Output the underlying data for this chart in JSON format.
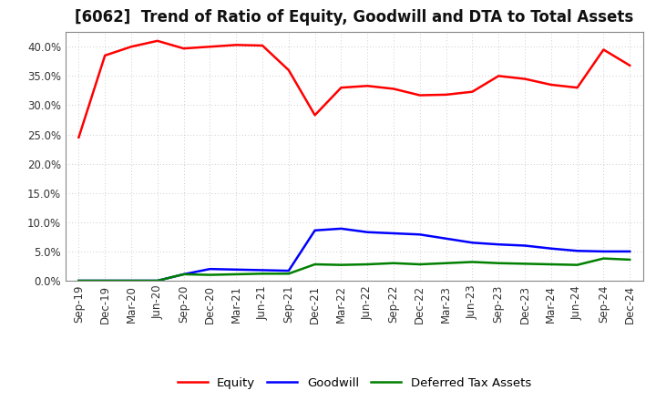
{
  "title": "[6062]  Trend of Ratio of Equity, Goodwill and DTA to Total Assets",
  "x_labels": [
    "Sep-19",
    "Dec-19",
    "Mar-20",
    "Jun-20",
    "Sep-20",
    "Dec-20",
    "Mar-21",
    "Jun-21",
    "Sep-21",
    "Dec-21",
    "Mar-22",
    "Jun-22",
    "Sep-22",
    "Dec-22",
    "Mar-23",
    "Jun-23",
    "Sep-23",
    "Dec-23",
    "Mar-24",
    "Jun-24",
    "Sep-24",
    "Dec-24"
  ],
  "equity": [
    0.245,
    0.385,
    0.4,
    0.41,
    0.397,
    0.4,
    0.403,
    0.402,
    0.36,
    0.283,
    0.33,
    0.333,
    0.328,
    0.317,
    0.318,
    0.323,
    0.35,
    0.345,
    0.335,
    0.33,
    0.395,
    0.368
  ],
  "goodwill": [
    0.0,
    0.0,
    0.0,
    0.0,
    0.011,
    0.02,
    0.019,
    0.018,
    0.017,
    0.086,
    0.089,
    0.083,
    0.081,
    0.079,
    0.072,
    0.065,
    0.062,
    0.06,
    0.055,
    0.051,
    0.05,
    0.05
  ],
  "dta": [
    0.0,
    0.0,
    0.0,
    0.0,
    0.011,
    0.01,
    0.011,
    0.012,
    0.012,
    0.028,
    0.027,
    0.028,
    0.03,
    0.028,
    0.03,
    0.032,
    0.03,
    0.029,
    0.028,
    0.027,
    0.038,
    0.036
  ],
  "equity_color": "#FF0000",
  "goodwill_color": "#0000FF",
  "dta_color": "#008000",
  "background_color": "#FFFFFF",
  "plot_bg_color": "#FFFFFF",
  "grid_color": "#BBBBBB",
  "ylim": [
    0.0,
    0.425
  ],
  "yticks": [
    0.0,
    0.05,
    0.1,
    0.15,
    0.2,
    0.25,
    0.3,
    0.35,
    0.4
  ],
  "legend_labels": [
    "Equity",
    "Goodwill",
    "Deferred Tax Assets"
  ],
  "linewidth": 1.8,
  "title_fontsize": 12,
  "tick_fontsize": 8.5
}
